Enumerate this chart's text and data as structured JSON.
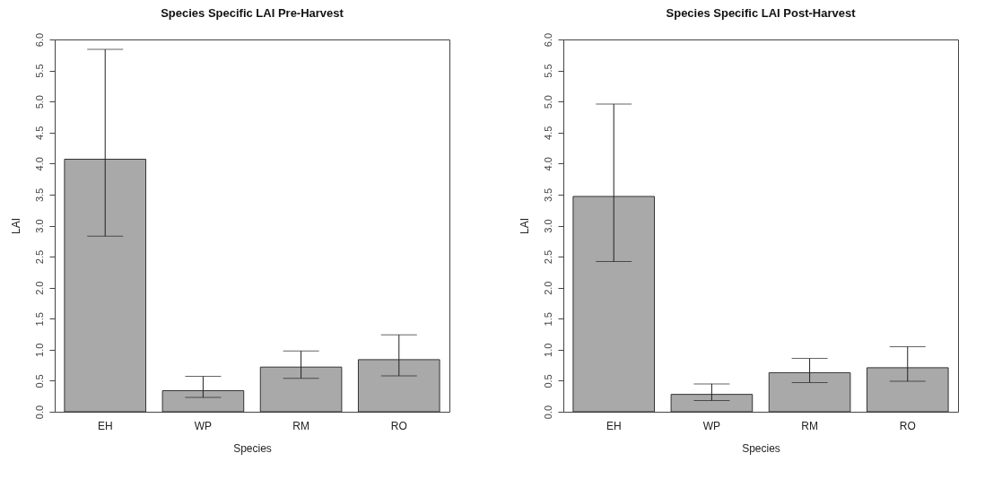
{
  "chart_data": [
    {
      "type": "bar",
      "title": "Species Specific LAI Pre-Harvest",
      "xlabel": "Species",
      "ylabel": "LAI",
      "categories": [
        "EH",
        "WP",
        "RM",
        "RO"
      ],
      "values": [
        4.07,
        0.34,
        0.72,
        0.84
      ],
      "color": "#a9a9a9",
      "errors": [
        [
          2.83,
          5.84
        ],
        [
          0.23,
          0.57
        ],
        [
          0.54,
          0.98
        ],
        [
          0.58,
          1.24
        ]
      ],
      "ylim": [
        0,
        6
      ],
      "yticks": [
        {
          "value": 0,
          "label": "0.0"
        },
        {
          "value": 0.5,
          "label": "0.5"
        },
        {
          "value": 1,
          "label": "1.0"
        },
        {
          "value": 1.5,
          "label": "1.5"
        },
        {
          "value": 2,
          "label": "2.0"
        },
        {
          "value": 2.5,
          "label": "2.5"
        },
        {
          "value": 3,
          "label": "3.0"
        },
        {
          "value": 3.5,
          "label": "3.5"
        },
        {
          "value": 4,
          "label": "4.0"
        },
        {
          "value": 4.5,
          "label": "4.5"
        },
        {
          "value": 5,
          "label": "5.0"
        },
        {
          "value": 5.5,
          "label": "5.5"
        },
        {
          "value": 6,
          "label": "6.0"
        }
      ],
      "grid": false
    },
    {
      "type": "bar",
      "title": "Species Specific LAI Post-Harvest",
      "xlabel": "Species",
      "ylabel": "LAI",
      "categories": [
        "EH",
        "WP",
        "RM",
        "RO"
      ],
      "values": [
        3.47,
        0.28,
        0.63,
        0.71
      ],
      "color": "#a9a9a9",
      "errors": [
        [
          2.42,
          4.96
        ],
        [
          0.18,
          0.45
        ],
        [
          0.47,
          0.86
        ],
        [
          0.49,
          1.05
        ]
      ],
      "ylim": [
        0,
        6
      ],
      "yticks": [
        {
          "value": 0,
          "label": "0.0"
        },
        {
          "value": 0.5,
          "label": "0.5"
        },
        {
          "value": 1,
          "label": "1.0"
        },
        {
          "value": 1.5,
          "label": "1.5"
        },
        {
          "value": 2,
          "label": "2.0"
        },
        {
          "value": 2.5,
          "label": "2.5"
        },
        {
          "value": 3,
          "label": "3.0"
        },
        {
          "value": 3.5,
          "label": "3.5"
        },
        {
          "value": 4,
          "label": "4.0"
        },
        {
          "value": 4.5,
          "label": "4.5"
        },
        {
          "value": 5,
          "label": "5.0"
        },
        {
          "value": 5.5,
          "label": "5.5"
        },
        {
          "value": 6,
          "label": "6.0"
        }
      ],
      "grid": false
    }
  ]
}
